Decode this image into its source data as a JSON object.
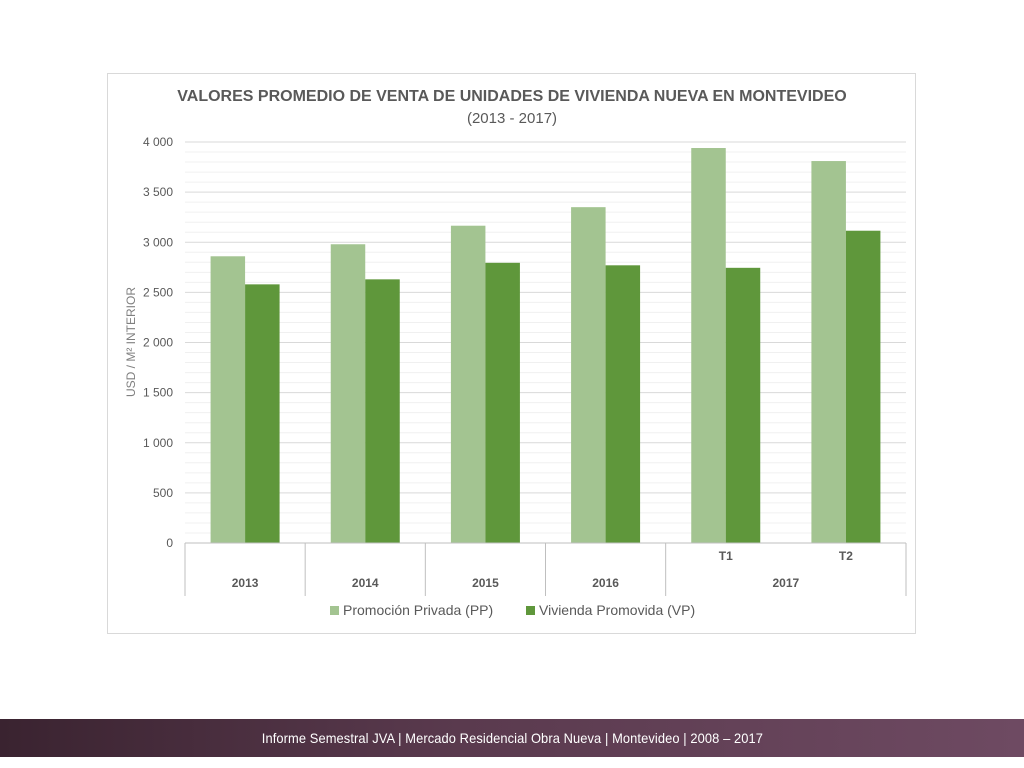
{
  "chart_data": {
    "type": "bar",
    "title": "VALORES PROMEDIO DE VENTA DE UNIDADES DE VIVIENDA NUEVA EN MONTEVIDEO",
    "subtitle": "(2013 - 2017)",
    "xlabel": "",
    "ylabel": "USD / M² INTERIOR",
    "ylim": [
      0,
      4000
    ],
    "yticks": [
      0,
      500,
      1000,
      1500,
      2000,
      2500,
      3000,
      3500,
      4000
    ],
    "ytick_labels": [
      "0",
      "500",
      "1 000",
      "1 500",
      "2 000",
      "2 500",
      "3 000",
      "3 500",
      "4 000"
    ],
    "grid": true,
    "legend_position": "bottom",
    "categories": [
      "2013",
      "2014",
      "2015",
      "2016",
      "T1",
      "T2"
    ],
    "category_groups": [
      {
        "label": "2013",
        "span": 1
      },
      {
        "label": "2014",
        "span": 1
      },
      {
        "label": "2015",
        "span": 1
      },
      {
        "label": "2016",
        "span": 1
      },
      {
        "label": "2017",
        "span": 2
      }
    ],
    "series": [
      {
        "name": "Promoción Privada (PP)",
        "color": "#a3c491",
        "values": [
          2860,
          2980,
          3165,
          3350,
          3940,
          3810
        ]
      },
      {
        "name": "Vivienda Promovida (VP)",
        "color": "#5f973b",
        "values": [
          2580,
          2630,
          2795,
          2770,
          2745,
          3115
        ]
      }
    ]
  },
  "footer": {
    "text": "Informe Semestral JVA | Mercado Residencial Obra Nueva | Montevideo | 2008 – 2017"
  }
}
